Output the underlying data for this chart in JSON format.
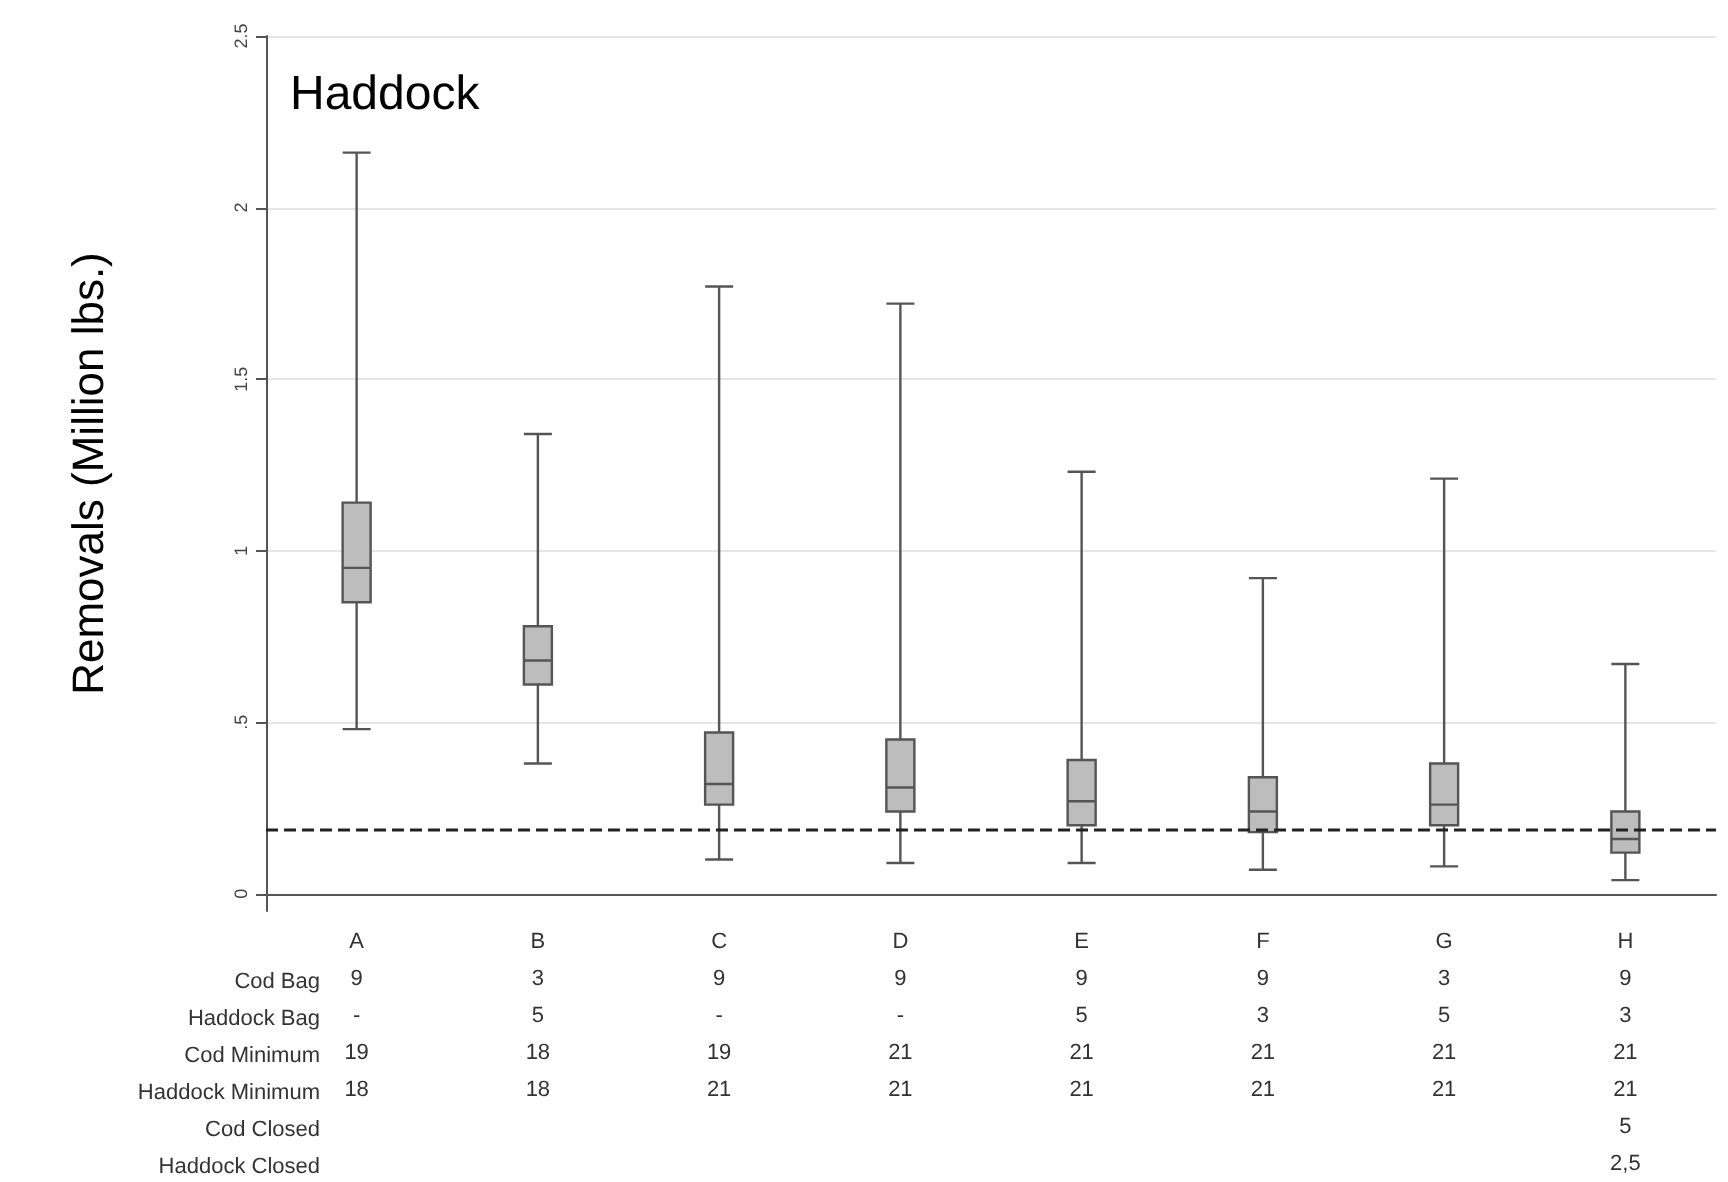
{
  "chart_data": {
    "type": "box",
    "title": "Haddock",
    "ylabel": "Removals (Million lbs.)",
    "categories": [
      "A\n9\n-\n19\n18",
      "B\n3\n5\n18\n18",
      "C\n9\n-\n19\n21",
      "D\n9\n-\n21\n21",
      "E\n9\n5\n21\n21",
      "F\n9\n3\n21\n21",
      "G\n3\n5\n21\n21",
      "H\n9\n3\n21\n21\n5\n2,5"
    ],
    "color": "#bdbdbd",
    "boxes": [
      {
        "low": 0.48,
        "q1": 0.85,
        "median": 0.95,
        "q3": 1.14,
        "high": 2.16
      },
      {
        "low": 0.38,
        "q1": 0.61,
        "median": 0.68,
        "q3": 0.78,
        "high": 1.34
      },
      {
        "low": 0.1,
        "q1": 0.26,
        "median": 0.32,
        "q3": 0.47,
        "high": 1.77
      },
      {
        "low": 0.09,
        "q1": 0.24,
        "median": 0.31,
        "q3": 0.45,
        "high": 1.72
      },
      {
        "low": 0.09,
        "q1": 0.2,
        "median": 0.27,
        "q3": 0.39,
        "high": 1.23
      },
      {
        "low": 0.07,
        "q1": 0.18,
        "median": 0.24,
        "q3": 0.34,
        "high": 0.92
      },
      {
        "low": 0.08,
        "q1": 0.2,
        "median": 0.26,
        "q3": 0.38,
        "high": 1.21
      },
      {
        "low": 0.04,
        "q1": 0.12,
        "median": 0.16,
        "q3": 0.24,
        "high": 0.67
      }
    ],
    "ylim": [
      -0.05,
      2.5
    ],
    "yticks": [
      0,
      {
        "value": 0.5,
        "label": ".5"
      },
      1,
      {
        "value": 1.5,
        "label": "1.5"
      },
      2,
      {
        "value": 2.5,
        "label": "2.5"
      }
    ],
    "grid": "y",
    "ref_lines": [
      {
        "axis": "y",
        "value": 0.19,
        "line_style": "dashed",
        "color": "#222222"
      }
    ],
    "annotations": [
      "Cod Bag",
      "Haddock Bag",
      "Cod Minimum",
      "Haddock Minimum",
      "Cod Closed",
      "Haddock Closed"
    ]
  }
}
